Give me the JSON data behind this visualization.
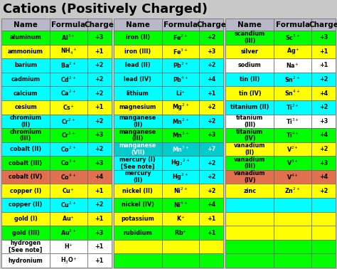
{
  "title": "Cations (Positively Charged)",
  "header": [
    "Name",
    "Formula",
    "Charge"
  ],
  "col1": [
    {
      "name": "aluminum",
      "formula": "Al$^{3+}$",
      "charge": "+3",
      "bg": "#00ff00"
    },
    {
      "name": "ammonium",
      "formula": "NH$_4$$^{+}$",
      "charge": "+1",
      "bg": "#ffff00"
    },
    {
      "name": "barium",
      "formula": "Ba$^{2+}$",
      "charge": "+2",
      "bg": "#00ffff"
    },
    {
      "name": "cadmium",
      "formula": "Cd$^{2+}$",
      "charge": "+2",
      "bg": "#00ffff"
    },
    {
      "name": "calcium",
      "formula": "Ca$^{2+}$",
      "charge": "+2",
      "bg": "#00ffff"
    },
    {
      "name": "cesium",
      "formula": "Cs$^{+}$",
      "charge": "+1",
      "bg": "#ffff00"
    },
    {
      "name": "chromium\n(II)",
      "formula": "Cr$^{2+}$",
      "charge": "+2",
      "bg": "#00ffff"
    },
    {
      "name": "chromium\n(III)",
      "formula": "Cr$^{3+}$",
      "charge": "+3",
      "bg": "#00ff00"
    },
    {
      "name": "cobalt (II)",
      "formula": "Co$^{2+}$",
      "charge": "+2",
      "bg": "#00ffff"
    },
    {
      "name": "cobalt (III)",
      "formula": "Co$^{3+}$",
      "charge": "+3",
      "bg": "#00ff00"
    },
    {
      "name": "cobalt (IV)",
      "formula": "Co$^{4+}$",
      "charge": "+4",
      "bg": "#e07050"
    },
    {
      "name": "copper (I)",
      "formula": "Cu$^{+}$",
      "charge": "+1",
      "bg": "#ffff00"
    },
    {
      "name": "copper (II)",
      "formula": "Cu$^{2+}$",
      "charge": "+2",
      "bg": "#00ffff"
    },
    {
      "name": "gold (I)",
      "formula": "Au$^{+}$",
      "charge": "+1",
      "bg": "#ffff00"
    },
    {
      "name": "gold (III)",
      "formula": "Au$^{3+}$",
      "charge": "+3",
      "bg": "#00ff00"
    },
    {
      "name": "hydrogen\n[See note]",
      "formula": "H$^{+}$",
      "charge": "+1",
      "bg": "#ffffff"
    },
    {
      "name": "hydronium",
      "formula": "H$_3$O$^{+}$",
      "charge": "+1",
      "bg": "#ffffff"
    }
  ],
  "col2": [
    {
      "name": "iron (II)",
      "formula": "Fe$^{2+}$",
      "charge": "+2",
      "bg": "#00ff00"
    },
    {
      "name": "iron (III)",
      "formula": "Fe$^{3+}$",
      "charge": "+3",
      "bg": "#ffff00"
    },
    {
      "name": "lead (II)",
      "formula": "Pb$^{2+}$",
      "charge": "+2",
      "bg": "#00ffff"
    },
    {
      "name": "lead (IV)",
      "formula": "Pb$^{4+}$",
      "charge": "+4",
      "bg": "#00ffff"
    },
    {
      "name": "lithium",
      "formula": "Li$^{+}$",
      "charge": "+1",
      "bg": "#00ffff"
    },
    {
      "name": "magnesium",
      "formula": "Mg$^{2+}$",
      "charge": "+2",
      "bg": "#ffff00"
    },
    {
      "name": "manganese\n(II)",
      "formula": "Mn$^{2+}$",
      "charge": "+2",
      "bg": "#00ffff"
    },
    {
      "name": "manganese\n(III)",
      "formula": "Mn$^{3+}$",
      "charge": "+3",
      "bg": "#00ff00"
    },
    {
      "name": "manganese\n(VII)",
      "formula": "Mn$^{7+}$",
      "charge": "+7",
      "bg": "#00cccc",
      "fg": "#ffffff"
    },
    {
      "name": "mercury (I)\n[See note]",
      "formula": "Hg$_2$$^{2+}$",
      "charge": "+2",
      "bg": "#00ffff"
    },
    {
      "name": "mercury\n(II)",
      "formula": "Hg$^{2+}$",
      "charge": "+2",
      "bg": "#00ffff"
    },
    {
      "name": "nickel (II)",
      "formula": "Ni$^{2+}$",
      "charge": "+2",
      "bg": "#ffff00"
    },
    {
      "name": "nickel (IV)",
      "formula": "Ni$^{4+}$",
      "charge": "+4",
      "bg": "#00ff00"
    },
    {
      "name": "potassium",
      "formula": "K$^{+}$",
      "charge": "+1",
      "bg": "#ffff00"
    },
    {
      "name": "rubidium",
      "formula": "Rb$^{+}$",
      "charge": "+1",
      "bg": "#00ff00"
    },
    {
      "name": "",
      "formula": "",
      "charge": "",
      "bg": "#ffff00"
    },
    {
      "name": "",
      "formula": "",
      "charge": "",
      "bg": "#00ff00"
    }
  ],
  "col3": [
    {
      "name": "scandium\n(III)",
      "formula": "Sc$^{3+}$",
      "charge": "+3",
      "bg": "#00ff00"
    },
    {
      "name": "silver",
      "formula": "Ag$^{+}$",
      "charge": "+1",
      "bg": "#ffff00"
    },
    {
      "name": "sodium",
      "formula": "Na$^{+}$",
      "charge": "+1",
      "bg": "#ffffff"
    },
    {
      "name": "tin (II)",
      "formula": "Sn$^{2+}$",
      "charge": "+2",
      "bg": "#00ffff"
    },
    {
      "name": "tin (IV)",
      "formula": "Sn$^{4+}$",
      "charge": "+4",
      "bg": "#ffff00"
    },
    {
      "name": "titanium (II)",
      "formula": "Ti$^{2+}$",
      "charge": "+2",
      "bg": "#00ffff"
    },
    {
      "name": "titanium\n(III)",
      "formula": "Ti$^{3+}$",
      "charge": "+3",
      "bg": "#ffffff"
    },
    {
      "name": "titanium\n(IV)",
      "formula": "Ti$^{4+}$",
      "charge": "+4",
      "bg": "#00ff00"
    },
    {
      "name": "vanadium\n(II)",
      "formula": "V$^{2+}$",
      "charge": "+2",
      "bg": "#ffff00"
    },
    {
      "name": "vanadium\n(III)",
      "formula": "V$^{3+}$",
      "charge": "+3",
      "bg": "#00ff00"
    },
    {
      "name": "vanadium\n(IV)",
      "formula": "V$^{4+}$",
      "charge": "+4",
      "bg": "#e07050"
    },
    {
      "name": "zinc",
      "formula": "Zn$^{2+}$",
      "charge": "+2",
      "bg": "#ffff00"
    },
    {
      "name": "",
      "formula": "",
      "charge": "",
      "bg": "#00ffff"
    },
    {
      "name": "",
      "formula": "",
      "charge": "",
      "bg": "#ffff00"
    },
    {
      "name": "",
      "formula": "",
      "charge": "",
      "bg": "#ffff00"
    },
    {
      "name": "",
      "formula": "",
      "charge": "",
      "bg": "#00ff00"
    },
    {
      "name": "",
      "formula": "",
      "charge": "",
      "bg": "#00ff00"
    }
  ],
  "bg_color": "#c8c8c8",
  "title_fontsize": 13,
  "cell_fontsize": 5.8,
  "header_fontsize": 7.5,
  "header_bg": "#b8b8c8"
}
